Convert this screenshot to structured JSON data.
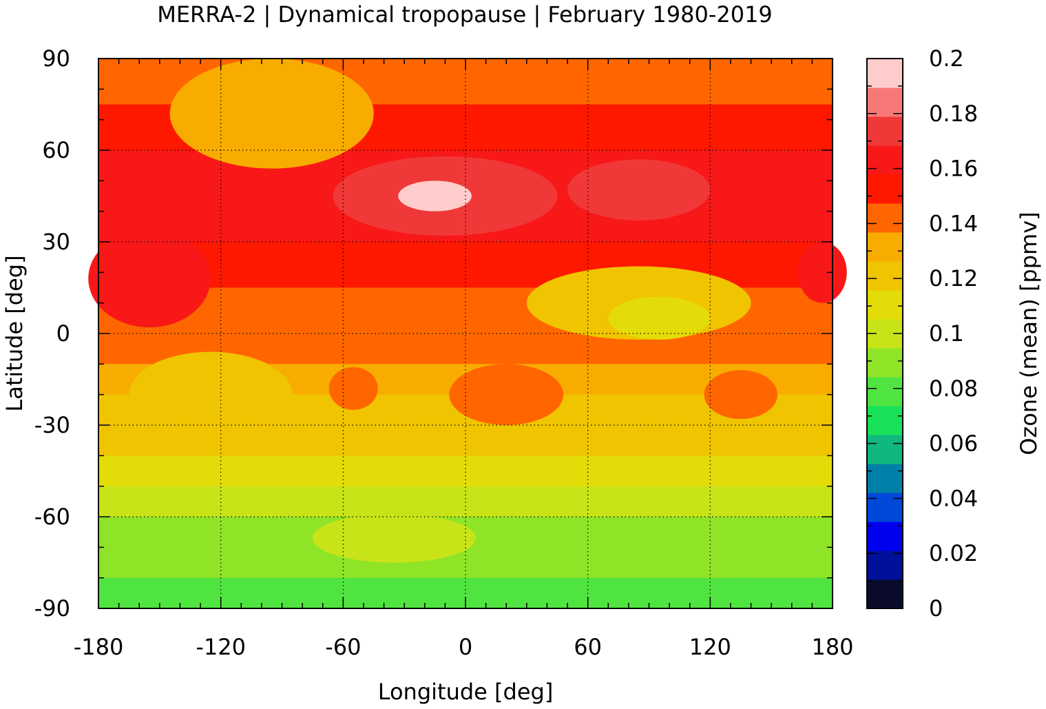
{
  "chart_data": {
    "type": "heatmap",
    "title": "MERRA-2 | Dynamical tropopause | February 1980-2019",
    "xlabel": "Longitude [deg]",
    "ylabel": "Latitude [deg]",
    "colorbar_label": "Ozone (mean) [ppmv]",
    "xlim": [
      -180,
      180
    ],
    "ylim": [
      -90,
      90
    ],
    "x_ticks": [
      -180,
      -120,
      -60,
      0,
      60,
      120,
      180
    ],
    "y_ticks": [
      90,
      60,
      30,
      0,
      -30,
      -60,
      -90
    ],
    "x_tick_labels": [
      "-180",
      "-120",
      "-60",
      "0",
      "60",
      "120",
      "180"
    ],
    "y_tick_labels": [
      "90",
      "60",
      "30",
      "0",
      "-30",
      "-60",
      "-90"
    ],
    "grid": true,
    "colorbar": {
      "range": [
        0,
        0.2
      ],
      "tick_values": [
        0,
        0.02,
        0.04,
        0.06,
        0.08,
        0.1,
        0.12,
        0.14,
        0.16,
        0.18,
        0.2
      ],
      "tick_labels": [
        "0",
        "0.02",
        "0.04",
        "0.06",
        "0.08",
        "0.1",
        "0.12",
        "0.14",
        "0.16",
        "0.18",
        "0.2"
      ],
      "colors": [
        "#0a0a2a",
        "#00109a",
        "#0000ee",
        "#0048d8",
        "#0080a8",
        "#10b880",
        "#18e058",
        "#50e440",
        "#90e428",
        "#c8e418",
        "#e4dc08",
        "#f0c400",
        "#f8ac00",
        "#ff6600",
        "#ff1800",
        "#f81818",
        "#f03838",
        "#f87878",
        "#ffcccc"
      ]
    },
    "bands": [
      {
        "lat": 90,
        "value": 0.135
      },
      {
        "lat": 75,
        "value": 0.145
      },
      {
        "lat": 60,
        "value": 0.155
      },
      {
        "lat": 45,
        "value": 0.162
      },
      {
        "lat": 30,
        "value": 0.155
      },
      {
        "lat": 15,
        "value": 0.148
      },
      {
        "lat": 0,
        "value": 0.142
      },
      {
        "lat": -10,
        "value": 0.135
      },
      {
        "lat": -20,
        "value": 0.128
      },
      {
        "lat": -30,
        "value": 0.122
      },
      {
        "lat": -40,
        "value": 0.115
      },
      {
        "lat": -50,
        "value": 0.107
      },
      {
        "lat": -60,
        "value": 0.098
      },
      {
        "lat": -70,
        "value": 0.09
      },
      {
        "lat": -80,
        "value": 0.085
      },
      {
        "lat": -90,
        "value": 0.08
      }
    ],
    "anomalies": [
      {
        "lon": -10,
        "lat": 45,
        "rlon": 55,
        "rlat": 13,
        "value": 0.17
      },
      {
        "lon": -15,
        "lat": 45,
        "rlon": 18,
        "rlat": 5,
        "value": 0.19
      },
      {
        "lon": 85,
        "lat": 47,
        "rlon": 35,
        "rlat": 10,
        "value": 0.17
      },
      {
        "lon": -140,
        "lat": 48,
        "rlon": 32,
        "rlat": 12,
        "value": 0.165
      },
      {
        "lon": -95,
        "lat": 72,
        "rlon": 50,
        "rlat": 18,
        "value": 0.132
      },
      {
        "lon": -155,
        "lat": 18,
        "rlon": 30,
        "rlat": 16,
        "value": 0.158
      },
      {
        "lon": 175,
        "lat": 20,
        "rlon": 12,
        "rlat": 10,
        "value": 0.158
      },
      {
        "lon": 85,
        "lat": 10,
        "rlon": 55,
        "rlat": 12,
        "value": 0.118
      },
      {
        "lon": 95,
        "lat": 5,
        "rlon": 25,
        "rlat": 7,
        "value": 0.112
      },
      {
        "lon": -125,
        "lat": -20,
        "rlon": 40,
        "rlat": 14,
        "value": 0.125
      },
      {
        "lon": 20,
        "lat": -20,
        "rlon": 28,
        "rlat": 10,
        "value": 0.146
      },
      {
        "lon": -55,
        "lat": -18,
        "rlon": 12,
        "rlat": 7,
        "value": 0.146
      },
      {
        "lon": 135,
        "lat": -20,
        "rlon": 18,
        "rlat": 8,
        "value": 0.146
      },
      {
        "lon": -35,
        "lat": -67,
        "rlon": 40,
        "rlat": 8,
        "value": 0.102
      },
      {
        "lon": 135,
        "lat": -82,
        "rlon": 8,
        "rlat": 2,
        "value": 0.075
      }
    ],
    "coastline_color": "#b4b4b4"
  }
}
